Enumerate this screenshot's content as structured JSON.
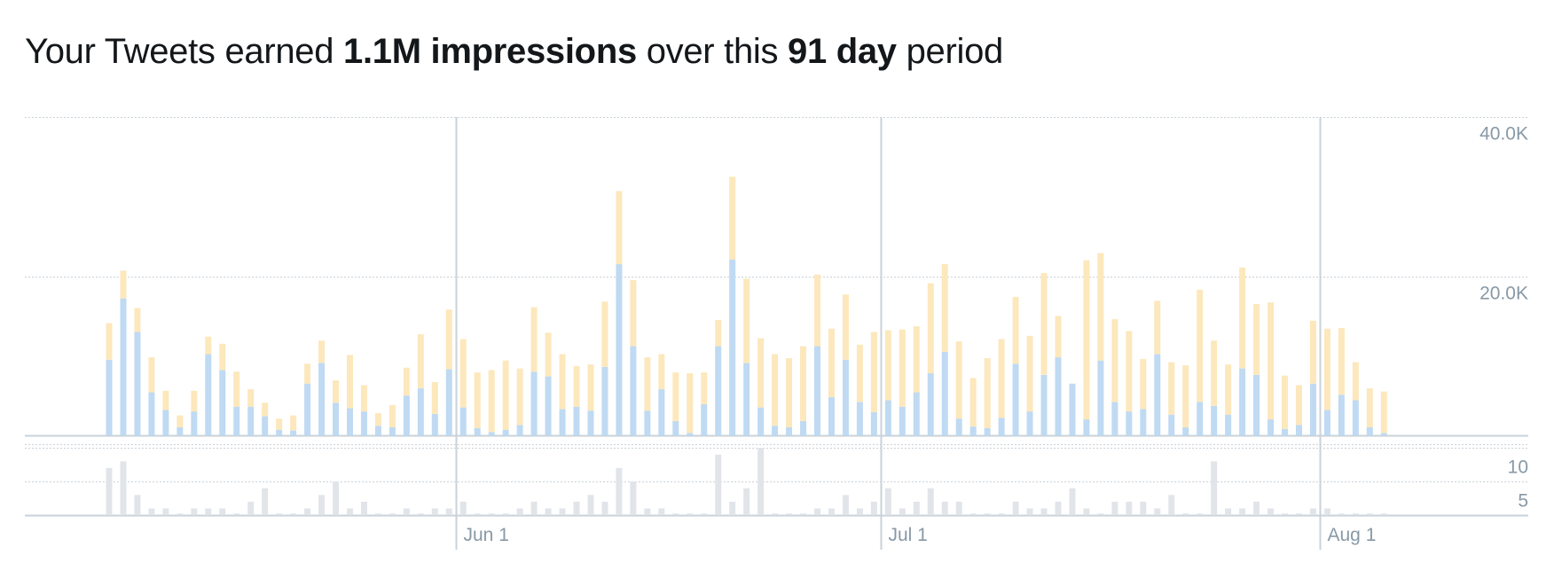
{
  "headline": {
    "prefix": "Your Tweets earned ",
    "impressions": "1.1M impressions",
    "middle": " over this ",
    "period": "91 day",
    "suffix": " period"
  },
  "colors": {
    "organic": "#fce8bc",
    "promoted": "#bfdaf2",
    "secondary": "#e1e5e9",
    "gridline": "#c9d2da",
    "axis_text": "#8899a6"
  },
  "chart_data": {
    "type": "bar",
    "start_date": "2019-05-07",
    "x_ticks": [
      {
        "date": "2019-06-01",
        "label": "Jun 1"
      },
      {
        "date": "2019-07-01",
        "label": "Jul 1"
      },
      {
        "date": "2019-08-01",
        "label": "Aug 1"
      }
    ],
    "top_panel": {
      "ylim": [
        0,
        40000
      ],
      "y_ticks": [
        {
          "value": 20000,
          "label": "20.0K"
        },
        {
          "value": 40000,
          "label": "40.0K"
        }
      ],
      "series": [
        {
          "values": [
            9500,
            17200,
            13000,
            5400,
            3200,
            1000,
            3000,
            10200,
            8200,
            3600,
            3600,
            2400,
            700,
            600,
            6500,
            9100,
            4100,
            3400,
            3000,
            1200,
            1000,
            5000,
            5900,
            2700,
            8300,
            3500,
            900,
            400,
            700,
            1300,
            8000,
            7400,
            3300,
            3600,
            3100,
            8600,
            21500,
            11200,
            3100,
            5800,
            1800,
            300,
            3900,
            11200,
            22100,
            9100,
            3500,
            1200,
            1000,
            1800,
            11200,
            4800,
            9500,
            4200,
            2900,
            4400,
            3600,
            5400,
            7800,
            10500,
            2100,
            1100,
            900,
            2200,
            9000,
            3000,
            7600,
            9800,
            6500,
            2000,
            9400,
            4200,
            3000,
            3300,
            10200,
            2600,
            1000,
            4200,
            3700,
            2600,
            8400,
            7600,
            2000,
            800,
            1300,
            6500,
            3200,
            5100,
            4400,
            1000,
            300
          ]
        },
        {
          "values": [
            4600,
            3500,
            3000,
            4400,
            2400,
            1500,
            2600,
            2200,
            3300,
            4400,
            2200,
            1700,
            1400,
            1900,
            2500,
            2800,
            2800,
            6700,
            3300,
            1600,
            2800,
            3500,
            6800,
            4000,
            7500,
            8600,
            7000,
            7800,
            8700,
            7100,
            8100,
            5500,
            6900,
            5100,
            5800,
            8200,
            9200,
            8300,
            6700,
            4400,
            6100,
            7500,
            4000,
            3300,
            10400,
            10600,
            8700,
            9000,
            8700,
            9400,
            9000,
            8600,
            8200,
            7200,
            10100,
            8800,
            9700,
            8300,
            11300,
            11000,
            9700,
            6100,
            8800,
            9900,
            8400,
            9500,
            12800,
            5200,
            0,
            20000,
            13500,
            10400,
            10100,
            6300,
            6700,
            6600,
            7800,
            14100,
            8200,
            6300,
            12700,
            8900,
            14700,
            6700,
            5000,
            7900,
            10200,
            8400,
            4800,
            4900,
            5200
          ]
        }
      ]
    },
    "bottom_panel": {
      "ylim": [
        0,
        12
      ],
      "y_ticks": [
        {
          "value": 5,
          "label": "5"
        },
        {
          "value": 10,
          "label": "10"
        }
      ],
      "series": [
        {
          "values": [
            7,
            8,
            3,
            1,
            1,
            0,
            1,
            1,
            1,
            0,
            2,
            4,
            0,
            0,
            1,
            3,
            5,
            1,
            2,
            0,
            0,
            1,
            0,
            1,
            1,
            2,
            0,
            0,
            0,
            1,
            2,
            1,
            1,
            2,
            3,
            2,
            7,
            5,
            1,
            1,
            0,
            0,
            0,
            9,
            2,
            4,
            10,
            0,
            0,
            0,
            1,
            1,
            3,
            1,
            2,
            4,
            1,
            2,
            4,
            2,
            2,
            0,
            0,
            0,
            2,
            1,
            1,
            2,
            4,
            1,
            0,
            2,
            2,
            2,
            1,
            3,
            0,
            0,
            8,
            1,
            1,
            2,
            1,
            0,
            0,
            1,
            1,
            0,
            0,
            0,
            0
          ]
        }
      ]
    }
  }
}
